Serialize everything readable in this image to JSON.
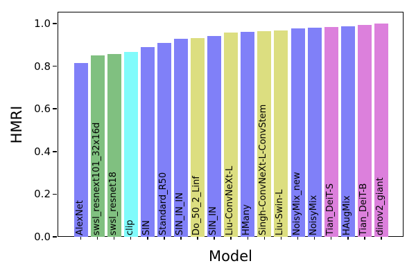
{
  "chart_data": {
    "type": "bar",
    "title": "",
    "xlabel": "Model",
    "ylabel": "HMRI",
    "ylim": [
      0,
      1.05
    ],
    "grid": false,
    "legend": "none",
    "ytick_labels": [
      "0.0",
      "0.2",
      "0.4",
      "0.6",
      "0.8",
      "1.0"
    ],
    "bar_label_style": "rotated-90-inside-bar-bottom",
    "categories": [
      "AlexNet",
      "swsl_resnext101_32x16d",
      "swsl_resnet18",
      "clip",
      "SIN",
      "Standard_R50",
      "SIN_IN_IN",
      "Do_50_2_Linf",
      "SIN_IN",
      "Liu-ConvNeXt-L",
      "HMany",
      "Singh-ConvNeXt-L-ConvStem",
      "Liu-Swin-L",
      "NoisyMix_new",
      "NoisyMix",
      "Tian_DeiT-S",
      "HAugMix",
      "Tian_DeiT-B",
      "dinov2_giant"
    ],
    "values": [
      0.815,
      0.851,
      0.857,
      0.867,
      0.891,
      0.909,
      0.93,
      0.933,
      0.94,
      0.958,
      0.96,
      0.963,
      0.966,
      0.978,
      0.979,
      0.985,
      0.986,
      0.995,
      1.0
    ],
    "bar_colors": [
      "#8080F8",
      "#80C080",
      "#80C080",
      "#80FBFB",
      "#8080F8",
      "#8080F8",
      "#8080F8",
      "#DCDE80",
      "#8080F8",
      "#DCDE80",
      "#8080F8",
      "#DCDE80",
      "#DCDE80",
      "#8080F8",
      "#8080F8",
      "#DC80DC",
      "#8080F8",
      "#DC80DC",
      "#DC80DC"
    ],
    "color_palette": {
      "blue": "#8080F8",
      "green": "#80C080",
      "cyan": "#80FBFB",
      "yellow": "#DCDE80",
      "magenta": "#DC80DC"
    }
  }
}
